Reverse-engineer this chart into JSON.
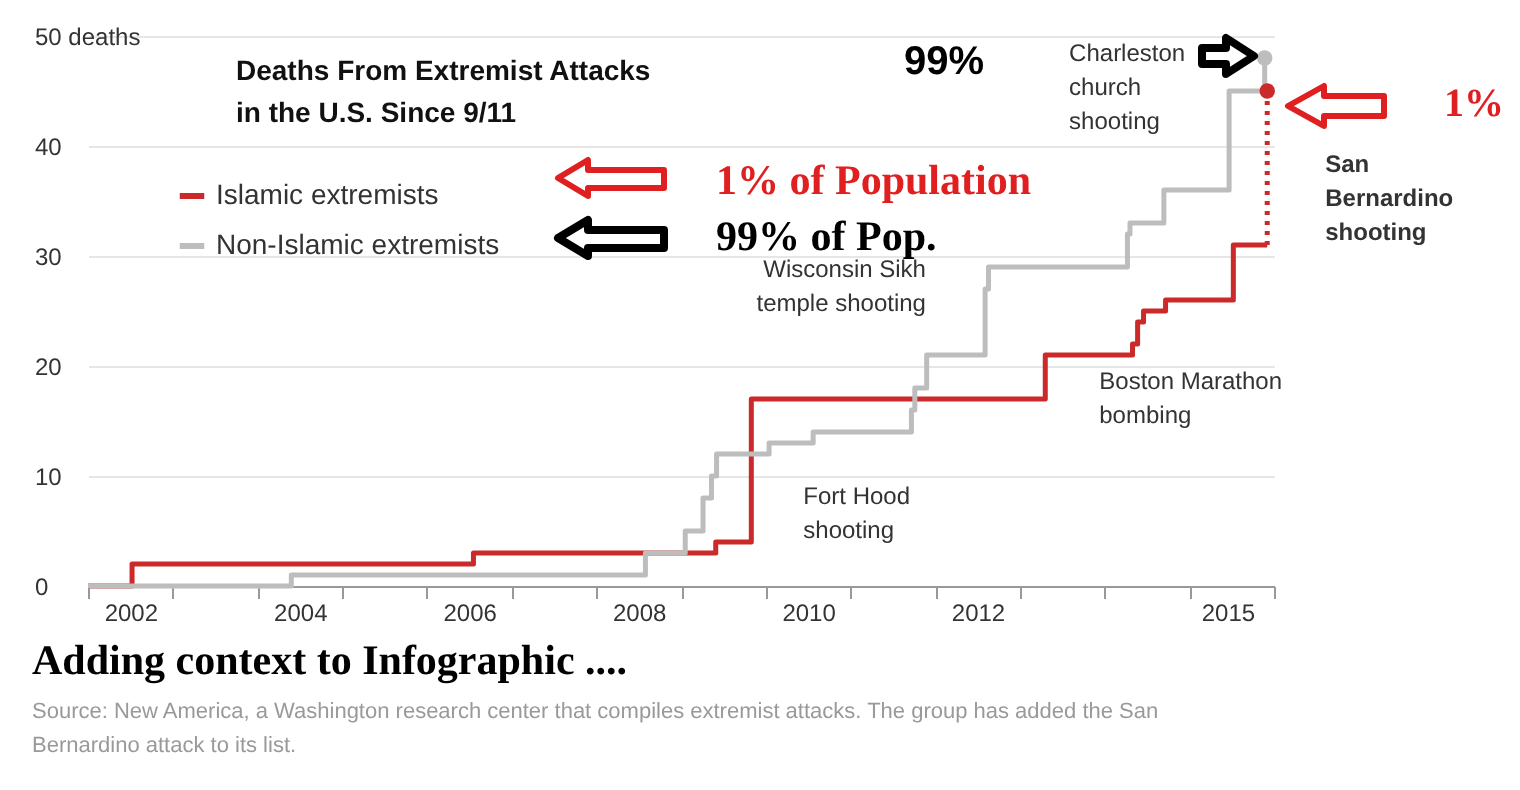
{
  "chart_data": {
    "type": "step",
    "title": "Deaths From Extremist Attacks\nin the U.S. Since 9/11",
    "xlim": [
      2002,
      2016
    ],
    "xticks": [
      {
        "value": 2002,
        "label": null
      },
      {
        "value": 2003,
        "label": null
      },
      {
        "value": 2004,
        "label": null
      },
      {
        "value": 2005,
        "label": null
      },
      {
        "value": 2006,
        "label": null
      },
      {
        "value": 2007,
        "label": null
      },
      {
        "value": 2008,
        "label": null
      },
      {
        "value": 2009,
        "label": null
      },
      {
        "value": 2010,
        "label": null
      },
      {
        "value": 2011,
        "label": null
      },
      {
        "value": 2012,
        "label": null
      },
      {
        "value": 2013,
        "label": null
      },
      {
        "value": 2014,
        "label": null
      },
      {
        "value": 2015,
        "label": null
      },
      {
        "value": 2016,
        "label": null
      },
      {
        "value": 2002.5,
        "label": "2002"
      },
      {
        "value": 2004.5,
        "label": "2004"
      },
      {
        "value": 2006.5,
        "label": "2006"
      },
      {
        "value": 2008.5,
        "label": "2008"
      },
      {
        "value": 2010.5,
        "label": "2010"
      },
      {
        "value": 2012.5,
        "label": "2012"
      },
      {
        "value": 2015.45,
        "label": "2015"
      }
    ],
    "ylim": [
      0,
      50
    ],
    "yticks": [
      0,
      10,
      20,
      30,
      40,
      {
        "value": 50,
        "label": "50 deaths"
      }
    ],
    "grid": "y",
    "legend": "top left",
    "series": [
      {
        "name": "Islamic extremists",
        "color": "#cc2a2a",
        "x": [
          2002,
          2002.52,
          2006.55,
          2009.41,
          2009.83,
          2013.3,
          2014.33,
          2014.39,
          2014.46,
          2014.72,
          2015.52,
          2015.92
        ],
        "values": [
          0,
          2,
          3,
          4,
          17,
          21,
          22,
          24,
          25,
          26,
          31,
          31
        ]
      },
      {
        "name": "Non-Islamic extremists",
        "color": "#bdbdbd",
        "x": [
          2002,
          2004.4,
          2008.58,
          2009.05,
          2009.26,
          2009.36,
          2009.42,
          2010.04,
          2010.56,
          2011.72,
          2011.76,
          2011.9,
          2012.59,
          2012.63,
          2014.27,
          2014.3,
          2014.7,
          2015.47,
          2015.89
        ],
        "values": [
          0,
          1,
          3,
          5,
          8,
          10,
          12,
          13,
          14,
          16,
          18,
          21,
          27,
          29,
          32,
          33,
          36,
          45,
          48
        ]
      },
      {
        "type": "line",
        "color": "#cc2a2a",
        "line_style": "dotted",
        "x": [
          2015.92,
          2015.92
        ],
        "values": [
          31,
          45
        ]
      },
      {
        "type": "scatter",
        "color": "#cc2a2a",
        "marker": "circle",
        "x": [
          2015.92
        ],
        "values": [
          45
        ]
      },
      {
        "type": "scatter",
        "color": "#bdbdbd",
        "marker": "circle",
        "x": [
          2015.89
        ],
        "values": [
          48
        ]
      }
    ],
    "annotations": [
      {
        "text": "Charleston\nchurch\nshooting",
        "x": 2015.47,
        "y": 45
      },
      {
        "text": "San\nBernardino\nshooting",
        "x": 2015.92,
        "y": 38
      },
      {
        "text": "Wisconsin Sikh\ntemple shooting",
        "x": 2012.6,
        "y": 27
      },
      {
        "text": "Boston Marathon\nbombing",
        "x": 2013.3,
        "y": 21
      },
      {
        "text": "Fort Hood\nshooting",
        "x": 2009.83,
        "y": 10
      },
      "1% of Population",
      "99% of Pop.",
      "99%",
      "1%",
      "Adding context to Infographic ....",
      "Source: New America, a Washington research center that compiles extremist attacks. The group has added the San\nBernardino attack to its list."
    ]
  }
}
